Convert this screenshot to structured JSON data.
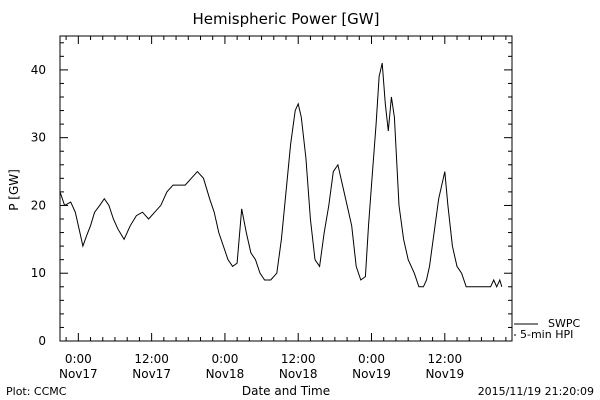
{
  "chart_data": {
    "type": "line",
    "title": "Hemispheric Power [GW]",
    "ylabel": "P [GW]",
    "xlabel": "Date and Time",
    "ylim": [
      0,
      45
    ],
    "yticks": [
      0,
      10,
      20,
      30,
      40
    ],
    "xlim": [
      "2015-11-16 21:00",
      "2015-11-19 23:00"
    ],
    "xticks": [
      {
        "t": "2015-11-17 00:00",
        "line1": "0:00",
        "line2": "Nov17"
      },
      {
        "t": "2015-11-17 12:00",
        "line1": "12:00",
        "line2": "Nov17"
      },
      {
        "t": "2015-11-18 00:00",
        "line1": "0:00",
        "line2": "Nov18"
      },
      {
        "t": "2015-11-18 12:00",
        "line1": "12:00",
        "line2": "Nov18"
      },
      {
        "t": "2015-11-19 00:00",
        "line1": "0:00",
        "line2": "Nov19"
      },
      {
        "t": "2015-11-19 12:00",
        "line1": "12:00",
        "line2": "Nov19"
      }
    ],
    "series": [
      {
        "name": "5-min HPI",
        "points": [
          [
            "2015-11-16 21:00",
            22
          ],
          [
            "2015-11-16 21:45",
            20
          ],
          [
            "2015-11-16 22:45",
            20.5
          ],
          [
            "2015-11-16 23:30",
            19
          ],
          [
            "2015-11-17 00:15",
            16
          ],
          [
            "2015-11-17 00:45",
            14
          ],
          [
            "2015-11-17 01:20",
            15.5
          ],
          [
            "2015-11-17 02:00",
            17
          ],
          [
            "2015-11-17 02:40",
            19
          ],
          [
            "2015-11-17 03:30",
            20
          ],
          [
            "2015-11-17 04:15",
            21
          ],
          [
            "2015-11-17 05:00",
            20
          ],
          [
            "2015-11-17 05:45",
            18
          ],
          [
            "2015-11-17 06:30",
            16.5
          ],
          [
            "2015-11-17 07:30",
            15
          ],
          [
            "2015-11-17 08:30",
            17
          ],
          [
            "2015-11-17 09:30",
            18.5
          ],
          [
            "2015-11-17 10:30",
            19
          ],
          [
            "2015-11-17 11:30",
            18
          ],
          [
            "2015-11-17 12:30",
            19
          ],
          [
            "2015-11-17 13:30",
            20
          ],
          [
            "2015-11-17 14:30",
            22
          ],
          [
            "2015-11-17 15:30",
            23
          ],
          [
            "2015-11-17 16:30",
            23
          ],
          [
            "2015-11-17 17:30",
            23
          ],
          [
            "2015-11-17 18:30",
            24
          ],
          [
            "2015-11-17 19:30",
            25
          ],
          [
            "2015-11-17 20:30",
            24
          ],
          [
            "2015-11-17 21:30",
            21
          ],
          [
            "2015-11-17 22:15",
            19
          ],
          [
            "2015-11-17 23:00",
            16
          ],
          [
            "2015-11-17 23:45",
            14
          ],
          [
            "2015-11-18 00:30",
            12
          ],
          [
            "2015-11-18 01:15",
            11
          ],
          [
            "2015-11-18 02:00",
            11.5
          ],
          [
            "2015-11-18 02:45",
            19.5
          ],
          [
            "2015-11-18 03:30",
            16
          ],
          [
            "2015-11-18 04:15",
            13
          ],
          [
            "2015-11-18 05:00",
            12
          ],
          [
            "2015-11-18 05:45",
            10
          ],
          [
            "2015-11-18 06:30",
            9
          ],
          [
            "2015-11-18 07:30",
            9
          ],
          [
            "2015-11-18 08:30",
            10
          ],
          [
            "2015-11-18 09:15",
            15
          ],
          [
            "2015-11-18 10:00",
            22
          ],
          [
            "2015-11-18 10:45",
            29
          ],
          [
            "2015-11-18 11:30",
            34
          ],
          [
            "2015-11-18 12:00",
            35
          ],
          [
            "2015-11-18 12:30",
            33
          ],
          [
            "2015-11-18 13:15",
            27
          ],
          [
            "2015-11-18 14:00",
            18
          ],
          [
            "2015-11-18 14:45",
            12
          ],
          [
            "2015-11-18 15:30",
            11
          ],
          [
            "2015-11-18 16:15",
            16
          ],
          [
            "2015-11-18 17:00",
            20
          ],
          [
            "2015-11-18 17:45",
            25
          ],
          [
            "2015-11-18 18:30",
            26
          ],
          [
            "2015-11-18 19:15",
            23
          ],
          [
            "2015-11-18 20:00",
            20
          ],
          [
            "2015-11-18 20:45",
            17
          ],
          [
            "2015-11-18 21:30",
            11
          ],
          [
            "2015-11-18 22:15",
            9
          ],
          [
            "2015-11-18 23:00",
            9.5
          ],
          [
            "2015-11-18 23:30",
            17
          ],
          [
            "2015-11-19 00:00",
            23
          ],
          [
            "2015-11-19 00:45",
            32
          ],
          [
            "2015-11-19 01:15",
            39
          ],
          [
            "2015-11-19 01:45",
            41
          ],
          [
            "2015-11-19 02:15",
            35
          ],
          [
            "2015-11-19 02:45",
            31
          ],
          [
            "2015-11-19 03:15",
            36
          ],
          [
            "2015-11-19 03:45",
            33
          ],
          [
            "2015-11-19 04:30",
            20
          ],
          [
            "2015-11-19 05:15",
            15
          ],
          [
            "2015-11-19 06:00",
            12
          ],
          [
            "2015-11-19 07:00",
            10
          ],
          [
            "2015-11-19 07:45",
            8
          ],
          [
            "2015-11-19 08:30",
            8
          ],
          [
            "2015-11-19 09:00",
            9
          ],
          [
            "2015-11-19 09:30",
            11
          ],
          [
            "2015-11-19 10:15",
            16
          ],
          [
            "2015-11-19 11:00",
            21
          ],
          [
            "2015-11-19 11:45",
            24
          ],
          [
            "2015-11-19 12:00",
            25
          ],
          [
            "2015-11-19 12:30",
            20
          ],
          [
            "2015-11-19 13:15",
            14
          ],
          [
            "2015-11-19 14:00",
            11
          ],
          [
            "2015-11-19 14:45",
            10
          ],
          [
            "2015-11-19 15:30",
            8
          ],
          [
            "2015-11-19 16:30",
            8
          ],
          [
            "2015-11-19 17:30",
            8
          ],
          [
            "2015-11-19 18:30",
            8
          ],
          [
            "2015-11-19 19:30",
            8
          ],
          [
            "2015-11-19 20:00",
            9
          ],
          [
            "2015-11-19 20:30",
            8
          ],
          [
            "2015-11-19 21:00",
            9
          ],
          [
            "2015-11-19 21:20",
            8
          ]
        ]
      }
    ],
    "legend_position": "right, below plot",
    "legend_entries": [
      "SWPC",
      "5-min HPI"
    ]
  },
  "footer": {
    "plot_credit": "Plot: CCMC",
    "timestamp": "2015/11/19 21:20:09"
  }
}
